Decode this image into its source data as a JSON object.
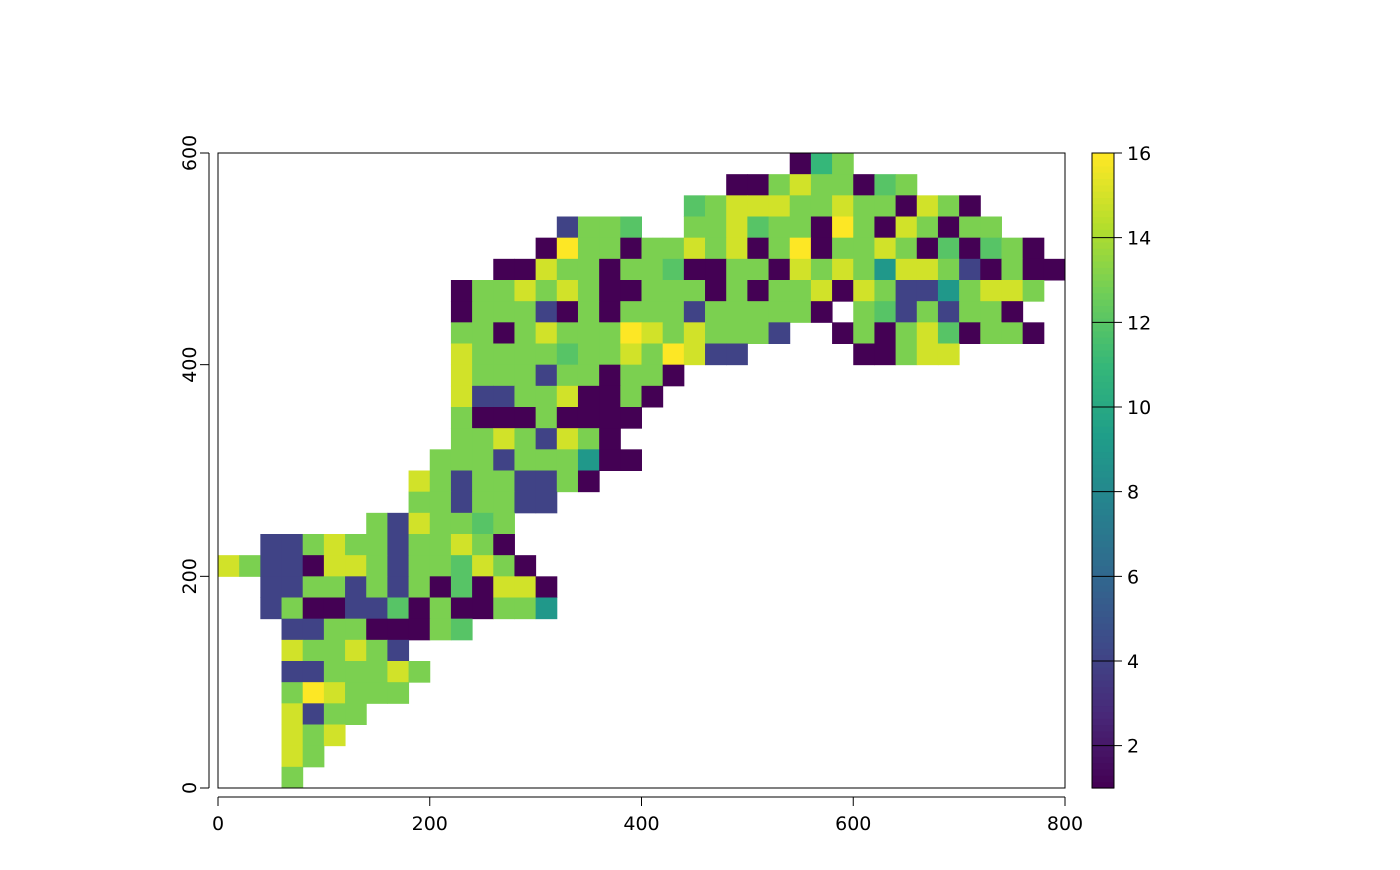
{
  "chart_data": {
    "type": "heatmap",
    "title": "",
    "xlabel": "",
    "ylabel": "",
    "xlim": [
      0,
      800
    ],
    "ylim": [
      0,
      600
    ],
    "x_ticks": [
      "0",
      "200",
      "400",
      "600",
      "800"
    ],
    "y_ticks": [
      "0",
      "200",
      "400",
      "600"
    ],
    "cell_size": 20,
    "value_encoding": "hex digit per cell: 1-9 then a=10 ... g=16; '.' = no data",
    "rows": [
      {
        "y_top": 600,
        "x_start": 540,
        "values": "1bd"
      },
      {
        "y_top": 580,
        "x_start": 480,
        "values": "11dfdd1cd"
      },
      {
        "y_top": 560,
        "x_start": 440,
        "values": "cdfffddfdd1fd1"
      },
      {
        "y_top": 540,
        "x_start": 320,
        "values": "4ddc..ddfcdd1gd1fd1dd"
      },
      {
        "y_top": 520,
        "x_start": 300,
        "values": "1gdd1ddfdf1dg1ddfd1c1cd1"
      },
      {
        "y_top": 500,
        "x_start": 260,
        "values": "11fdd1ddc11dd1fdfd9ffd41d11"
      },
      {
        "y_top": 480,
        "x_start": 220,
        "values": "1ddfdfd11ddd1d1ddf1fd449dffd"
      },
      {
        "y_top": 460,
        "x_start": 220,
        "values": "1ddd41d1ddd4ddddd1.dc4d4dd1."
      },
      {
        "y_top": 440,
        "x_start": 220,
        "values": "dd1dfdddgfdfddd4..1d1dfc1dd1"
      },
      {
        "y_top": 420,
        "x_start": 220,
        "values": "fddddcddfdgf44.....11dff"
      },
      {
        "y_top": 400,
        "x_start": 220,
        "values": "fddd4dd1dd1"
      },
      {
        "y_top": 380,
        "x_start": 220,
        "values": "f44ddf11d1"
      },
      {
        "y_top": 360,
        "x_start": 220,
        "values": "d111d1111"
      },
      {
        "y_top": 340,
        "x_start": 220,
        "values": "ddfd4fd1"
      },
      {
        "y_top": 320,
        "x_start": 200,
        "values": "ddd4ddd911"
      },
      {
        "y_top": 300,
        "x_start": 180,
        "values": "fd4dd44d1"
      },
      {
        "y_top": 280,
        "x_start": 180,
        "values": "dd4dd44"
      },
      {
        "y_top": 260,
        "x_start": 140,
        "values": "d4fddcd"
      },
      {
        "y_top": 240,
        "x_start": 40,
        "values": "44dfdd4ddfd1"
      },
      {
        "y_top": 220,
        "x_start": 0,
        "values": "fd441ffd4ddcfd1"
      },
      {
        "y_top": 200,
        "x_start": 40,
        "values": "44dd4d4d1c1ff1"
      },
      {
        "y_top": 180,
        "x_start": 40,
        "values": "4d1144c1d11dd9"
      },
      {
        "y_top": 160,
        "x_start": 60,
        "values": "44dd111dc"
      },
      {
        "y_top": 140,
        "x_start": 60,
        "values": "fddfd4"
      },
      {
        "y_top": 120,
        "x_start": 60,
        "values": "44dddfd"
      },
      {
        "y_top": 100,
        "x_start": 60,
        "values": "dgfddd"
      },
      {
        "y_top": 80,
        "x_start": 60,
        "values": "f4dd"
      },
      {
        "y_top": 60,
        "x_start": 60,
        "values": "fdf"
      },
      {
        "y_top": 40,
        "x_start": 60,
        "values": "fd"
      },
      {
        "y_top": 20,
        "x_start": 60,
        "values": "d"
      }
    ],
    "colorbar": {
      "palette": "viridis",
      "range": [
        1,
        16
      ],
      "ticks": [
        "2",
        "4",
        "6",
        "8",
        "10",
        "12",
        "14",
        "16"
      ]
    },
    "grid": false,
    "legend_placement": "right"
  }
}
